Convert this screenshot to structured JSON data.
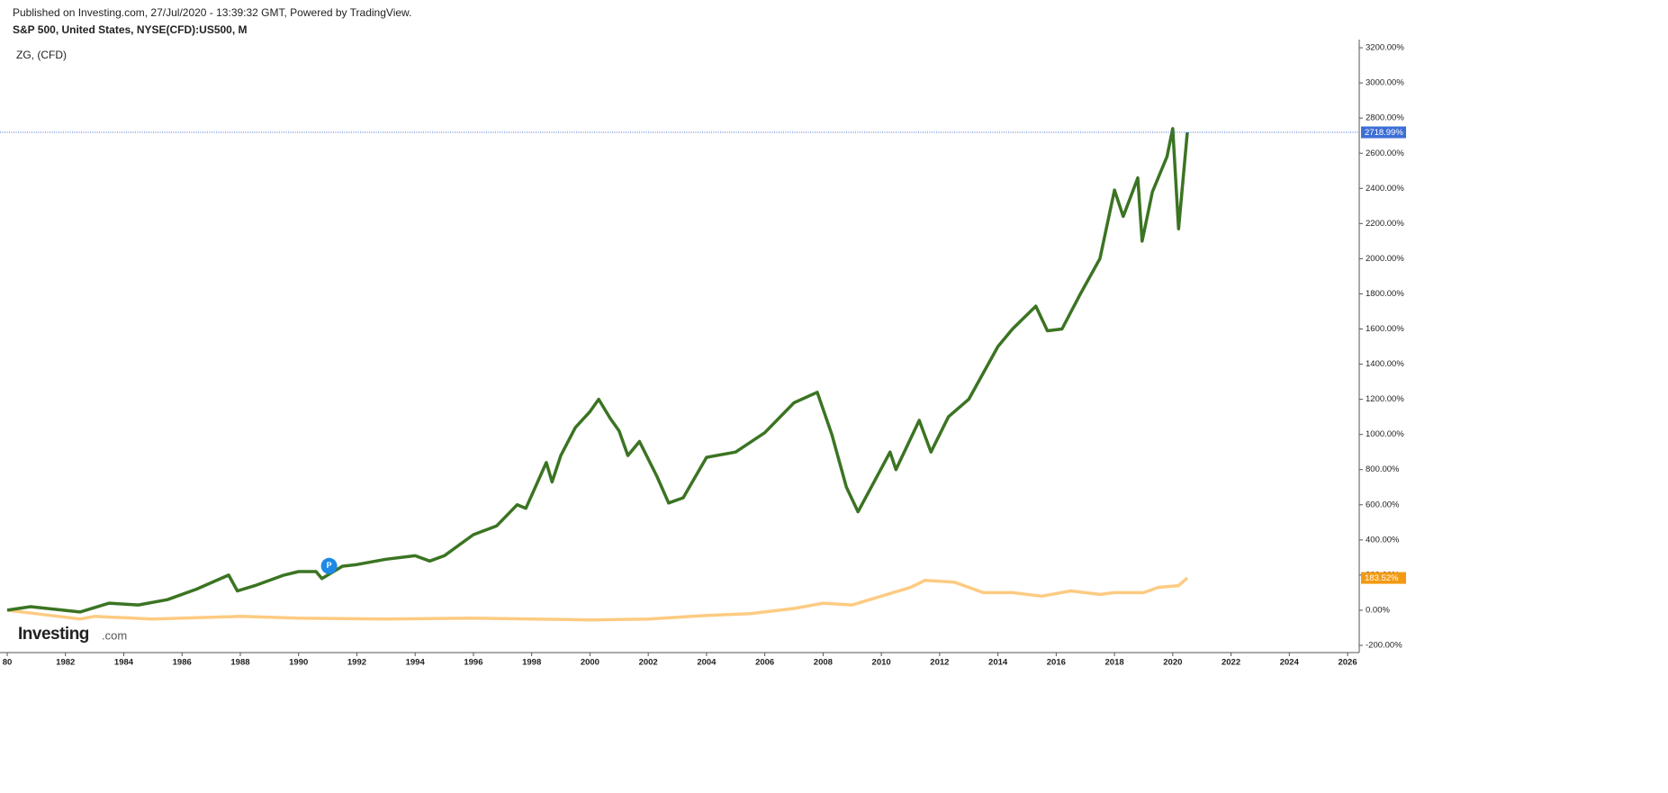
{
  "chart_data": {
    "type": "line",
    "published": "Published on Investing.com, 27/Jul/2020 - 13:39:32 GMT, Powered by TradingView.",
    "title": "S&P 500, United States, NYSE(CFD):US500, M",
    "subtitle": "ZG,  (CFD)",
    "logo": "Investing",
    "logo_suffix": ".com",
    "marker_label": "P",
    "xlim": [
      1980,
      2026.4
    ],
    "ylim": [
      -241,
      3226
    ],
    "xticks": [
      {
        "value": 1980,
        "label": "80"
      },
      1982,
      1984,
      1986,
      1988,
      1990,
      1992,
      1994,
      1996,
      1998,
      2000,
      2002,
      2004,
      2006,
      2008,
      2010,
      2012,
      2014,
      2016,
      2018,
      2020,
      2022,
      2024,
      2026
    ],
    "yticks": [
      {
        "value": -200,
        "label": "-200.00%"
      },
      {
        "value": 0,
        "label": "0.00%"
      },
      {
        "value": 200,
        "label": "200.00%"
      },
      {
        "value": 400,
        "label": "400.00%"
      },
      {
        "value": 600,
        "label": "600.00%"
      },
      {
        "value": 800,
        "label": "800.00%"
      },
      {
        "value": 1000,
        "label": "1000.00%"
      },
      {
        "value": 1200,
        "label": "1200.00%"
      },
      {
        "value": 1400,
        "label": "1400.00%"
      },
      {
        "value": 1600,
        "label": "1600.00%"
      },
      {
        "value": 1800,
        "label": "1800.00%"
      },
      {
        "value": 2000,
        "label": "2000.00%"
      },
      {
        "value": 2200,
        "label": "2200.00%"
      },
      {
        "value": 2400,
        "label": "2400.00%"
      },
      {
        "value": 2600,
        "label": "2600.00%"
      },
      {
        "value": 2800,
        "label": "2800.00%"
      },
      {
        "value": 3000,
        "label": "3000.00%"
      },
      {
        "value": 3200,
        "label": "3200.00%"
      }
    ],
    "series": [
      {
        "color": "#3b7422",
        "badge_color": "#3d6fd6",
        "line_width": 3.5,
        "x": [
          1980,
          1980.8,
          1982.5,
          1983.5,
          1984.5,
          1985.5,
          1986.5,
          1987.6,
          1987.9,
          1988.5,
          1989.5,
          1990,
          1990.6,
          1990.8,
          1991.5,
          1992,
          1993,
          1994,
          1994.5,
          1995,
          1996,
          1996.8,
          1997.5,
          1997.8,
          1998.5,
          1998.7,
          1999,
          1999.5,
          2000,
          2000.3,
          2000.7,
          2001,
          2001.3,
          2001.7,
          2002.3,
          2002.7,
          2003.2,
          2004,
          2005,
          2006,
          2007,
          2007.8,
          2008.3,
          2008.8,
          2009.2,
          2010.3,
          2010.5,
          2011.3,
          2011.7,
          2012.3,
          2013,
          2014,
          2014.5,
          2015.3,
          2015.7,
          2016.2,
          2016.8,
          2017.5,
          2018,
          2018.3,
          2018.8,
          2018.95,
          2019.3,
          2019.8,
          2020,
          2020.2,
          2020.5
        ],
        "values": [
          0,
          20,
          -10,
          40,
          30,
          60,
          120,
          200,
          110,
          140,
          200,
          220,
          220,
          180,
          250,
          260,
          290,
          310,
          280,
          310,
          430,
          480,
          600,
          580,
          840,
          730,
          880,
          1040,
          1130,
          1200,
          1090,
          1020,
          880,
          960,
          760,
          610,
          640,
          870,
          900,
          1010,
          1180,
          1240,
          1000,
          700,
          560,
          900,
          800,
          1080,
          900,
          1100,
          1200,
          1500,
          1600,
          1730,
          1590,
          1600,
          1790,
          2000,
          2390,
          2240,
          2460,
          2100,
          2380,
          2580,
          2740,
          2170,
          2718.99
        ],
        "value_labels": [
          null,
          null,
          null,
          null,
          null,
          null,
          null,
          null,
          null,
          null,
          null,
          null,
          null,
          null,
          null,
          null,
          null,
          null,
          null,
          null,
          null,
          null,
          null,
          null,
          null,
          null,
          null,
          null,
          null,
          null,
          null,
          null,
          null,
          null,
          null,
          null,
          null,
          null,
          null,
          null,
          null,
          null,
          null,
          null,
          null,
          null,
          null,
          null,
          null,
          null,
          null,
          null,
          null,
          null,
          null,
          null,
          null,
          null,
          null,
          null,
          null,
          null,
          null,
          null,
          null,
          null,
          "2718.99%"
        ]
      },
      {
        "color": "#fdcb82",
        "badge_color": "#f39a12",
        "line_width": 3.5,
        "x": [
          1980,
          1981,
          1982.5,
          1983,
          1985,
          1987,
          1988,
          1990,
          1993,
          1996,
          2000,
          2002,
          2004,
          2005.5,
          2007,
          2008,
          2009,
          2010,
          2011,
          2011.5,
          2012.5,
          2013.5,
          2014.5,
          2015.5,
          2016.5,
          2017.5,
          2018,
          2019,
          2019.5,
          2020.2,
          2020.5
        ],
        "values": [
          0,
          -20,
          -50,
          -35,
          -50,
          -40,
          -35,
          -45,
          -50,
          -45,
          -55,
          -50,
          -30,
          -20,
          10,
          40,
          30,
          80,
          130,
          170,
          160,
          100,
          100,
          80,
          110,
          90,
          100,
          100,
          130,
          140,
          183.52
        ],
        "value_labels": [
          null,
          null,
          null,
          null,
          null,
          null,
          null,
          null,
          null,
          null,
          null,
          null,
          null,
          null,
          null,
          null,
          null,
          null,
          null,
          null,
          null,
          null,
          null,
          null,
          null,
          null,
          null,
          null,
          null,
          null,
          "183.52%"
        ]
      }
    ]
  }
}
